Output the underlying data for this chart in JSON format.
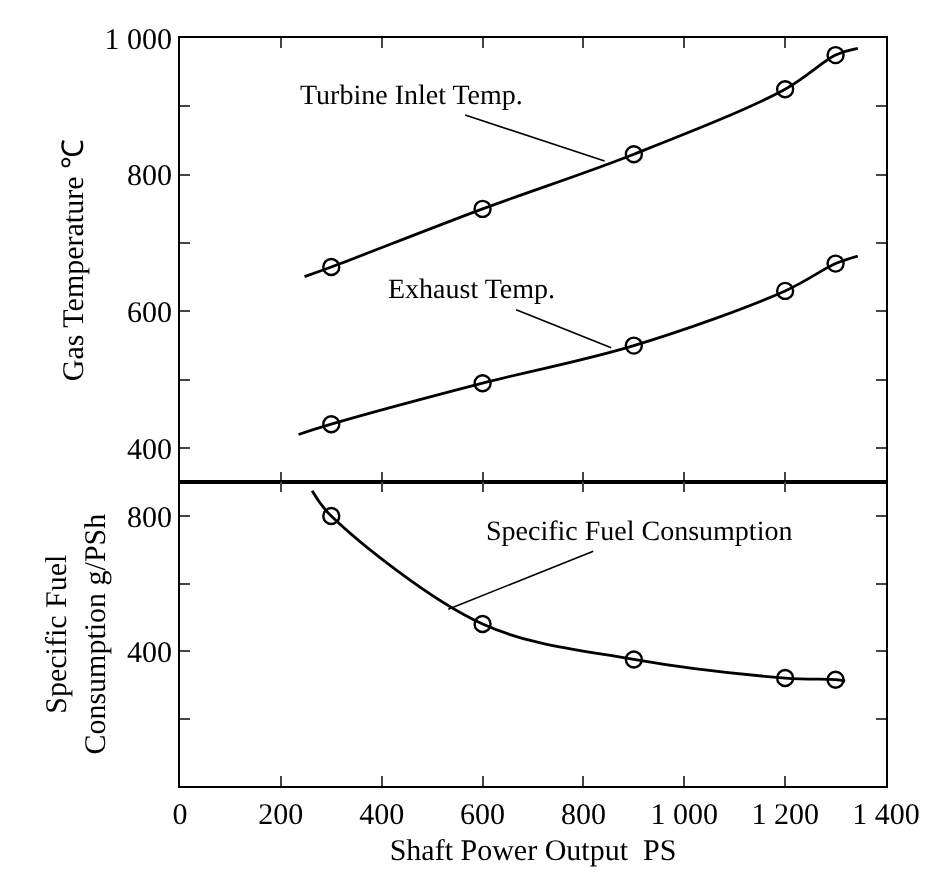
{
  "chart_data": [
    {
      "type": "line",
      "ylabel": "Gas Temperature ℃",
      "xlim": [
        0,
        1400
      ],
      "xticks": [
        {
          "value": 0,
          "label": null
        },
        {
          "value": 200,
          "label": null
        },
        {
          "value": 400,
          "label": null
        },
        {
          "value": 600,
          "label": null
        },
        {
          "value": 800,
          "label": null
        },
        {
          "value": 1000,
          "label": null
        },
        {
          "value": 1200,
          "label": null
        },
        {
          "value": 1400,
          "label": null
        }
      ],
      "ylim": [
        350,
        1000
      ],
      "yticks": [
        {
          "value": 400,
          "label": "400"
        },
        {
          "value": 500,
          "label": null
        },
        {
          "value": 600,
          "label": "600"
        },
        {
          "value": 700,
          "label": null
        },
        {
          "value": 800,
          "label": "800"
        },
        {
          "value": 900,
          "label": null
        },
        {
          "value": 1000,
          "label": "1 000"
        }
      ],
      "tick_labels": "y",
      "series": [
        {
          "color": "#000000",
          "marker": "none",
          "x": [
            247,
            300,
            600,
            900,
            1200,
            1300,
            1344
          ],
          "values": [
            651,
            665,
            750,
            830,
            925,
            975,
            985
          ]
        },
        {
          "type": "scatter",
          "color": "#000000",
          "marker": "circle",
          "x": [
            300,
            600,
            900,
            1200,
            1300
          ],
          "values": [
            665,
            750,
            830,
            925,
            975
          ]
        },
        {
          "color": "#000000",
          "marker": "none",
          "x": [
            235,
            300,
            600,
            900,
            1200,
            1300,
            1344
          ],
          "values": [
            420,
            435,
            495,
            550,
            630,
            670,
            681
          ]
        },
        {
          "type": "scatter",
          "color": "#000000",
          "marker": "circle",
          "x": [
            300,
            600,
            900,
            1200,
            1300
          ],
          "values": [
            435,
            495,
            550,
            630,
            670
          ]
        }
      ],
      "annotations": [
        {
          "text": "Turbine Inlet Temp.",
          "x": 842,
          "y": 820
        },
        {
          "text": "Exhaust Temp.",
          "x": 855,
          "y": 547
        }
      ]
    },
    {
      "type": "line",
      "ylabel": "Specific Fuel\nConsumption g/PSh",
      "xlabel": "Shaft Power Output  PS",
      "xlim": [
        0,
        1400
      ],
      "xticks": [
        0,
        200,
        400,
        600,
        800,
        {
          "value": 1000,
          "label": "1 000"
        },
        {
          "value": 1200,
          "label": "1 200"
        },
        {
          "value": 1400,
          "label": "1 400"
        }
      ],
      "ylim": [
        0,
        900
      ],
      "yticks": [
        {
          "value": 200,
          "label": null
        },
        {
          "value": 400,
          "label": "400"
        },
        {
          "value": 600,
          "label": null
        },
        {
          "value": 800,
          "label": "800"
        }
      ],
      "series": [
        {
          "color": "#000000",
          "marker": "none",
          "x": [
            262,
            300,
            600,
            900,
            1200,
            1300,
            1319
          ],
          "values": [
            875,
            800,
            480,
            375,
            320,
            315,
            311
          ]
        },
        {
          "type": "scatter",
          "color": "#000000",
          "marker": "circle",
          "x": [
            300,
            600,
            900,
            1200,
            1300
          ],
          "values": [
            800,
            480,
            375,
            320,
            315
          ]
        }
      ],
      "annotations": [
        {
          "text": "Specific Fuel Consumption",
          "x": 532,
          "y": 524
        }
      ]
    }
  ]
}
